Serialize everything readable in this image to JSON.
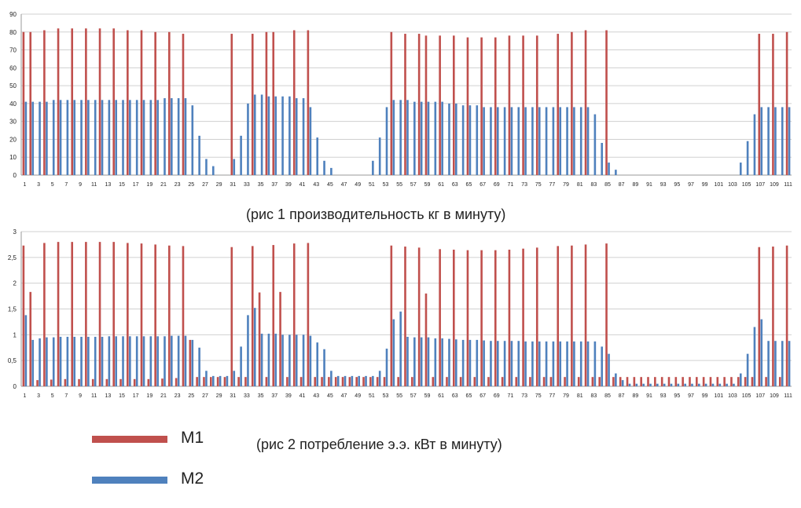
{
  "colors": {
    "m1": "#c0504d",
    "m2": "#4f81bd",
    "grid": "#d0d0d0",
    "axis": "#9a9a9a",
    "text": "#222222"
  },
  "captions": {
    "chart1": "(рис 1 производительность  кг в минуту)",
    "chart2": "(рис 2 потребление  э.э. кВт в минуту)"
  },
  "legend": {
    "m1": "М1",
    "m2": "М2"
  },
  "chart_data": [
    {
      "type": "bar",
      "title": "",
      "xlabel": "",
      "ylabel": "",
      "ylim": [
        0,
        90
      ],
      "yticks": [
        "0",
        "10",
        "20",
        "30",
        "40",
        "50",
        "60",
        "70",
        "80",
        "90"
      ],
      "grid": true,
      "categories_count": 111,
      "xtick_labels_every": 2,
      "series": [
        {
          "key": "m1",
          "values": [
            80,
            80,
            0,
            81,
            0,
            82,
            0,
            82,
            0,
            82,
            0,
            82,
            0,
            82,
            0,
            81,
            0,
            81,
            0,
            80,
            0,
            80,
            0,
            79,
            0,
            0,
            0,
            0,
            0,
            0,
            79,
            0,
            0,
            79,
            0,
            80,
            80,
            0,
            0,
            81,
            0,
            81,
            0,
            0,
            0,
            0,
            0,
            0,
            0,
            0,
            0,
            0,
            0,
            80,
            0,
            79,
            0,
            79,
            78,
            0,
            78,
            0,
            78,
            0,
            77,
            0,
            77,
            0,
            77,
            0,
            78,
            0,
            78,
            0,
            78,
            0,
            0,
            79,
            0,
            80,
            0,
            81,
            0,
            0,
            81,
            0,
            0,
            0,
            0,
            0,
            0,
            0,
            0,
            0,
            0,
            0,
            0,
            0,
            0,
            0,
            0,
            0,
            0,
            0,
            0,
            0,
            79,
            0,
            79,
            0,
            80
          ]
        },
        {
          "key": "m2",
          "values": [
            41,
            41,
            41,
            41,
            42,
            42,
            42,
            42,
            42,
            42,
            42,
            42,
            42,
            42,
            42,
            42,
            42,
            42,
            42,
            42,
            43,
            43,
            43,
            43,
            39,
            22,
            9,
            5,
            0,
            0,
            9,
            22,
            40,
            45,
            45,
            44,
            44,
            44,
            44,
            43,
            43,
            38,
            21,
            8,
            4,
            0,
            0,
            0,
            0,
            0,
            8,
            21,
            38,
            42,
            42,
            42,
            41,
            41,
            41,
            41,
            41,
            40,
            40,
            39,
            39,
            39,
            38,
            38,
            38,
            38,
            38,
            38,
            38,
            38,
            38,
            38,
            38,
            38,
            38,
            38,
            38,
            38,
            34,
            18,
            7,
            3,
            0,
            0,
            0,
            0,
            0,
            0,
            0,
            0,
            0,
            0,
            0,
            0,
            0,
            0,
            0,
            0,
            0,
            7,
            19,
            34,
            38,
            38,
            38,
            38,
            38
          ]
        }
      ]
    },
    {
      "type": "bar",
      "title": "",
      "xlabel": "",
      "ylabel": "",
      "ylim": [
        0,
        3
      ],
      "yticks": [
        "0",
        "0,5",
        "1",
        "1,5",
        "2",
        "2,5",
        "3"
      ],
      "grid": true,
      "categories_count": 111,
      "xtick_labels_every": 2,
      "series": [
        {
          "key": "m1",
          "values": [
            2.73,
            1.83,
            0.12,
            2.78,
            0.13,
            2.8,
            0.14,
            2.8,
            0.14,
            2.8,
            0.14,
            2.8,
            0.14,
            2.8,
            0.14,
            2.78,
            0.14,
            2.77,
            0.14,
            2.75,
            0.15,
            2.73,
            0.16,
            2.72,
            0.9,
            0.18,
            0.18,
            0.18,
            0.18,
            0.18,
            2.7,
            0.18,
            0.18,
            2.72,
            1.82,
            0.18,
            2.74,
            1.83,
            0.18,
            2.77,
            0.18,
            2.78,
            0.18,
            0.18,
            0.18,
            0.18,
            0.18,
            0.18,
            0.18,
            0.18,
            0.18,
            0.18,
            0.18,
            2.73,
            0.18,
            2.71,
            0.18,
            2.69,
            1.8,
            0.18,
            2.66,
            0.18,
            2.65,
            0.18,
            2.64,
            0.18,
            2.64,
            0.18,
            2.64,
            0.18,
            2.65,
            0.18,
            2.67,
            0.18,
            2.69,
            0.18,
            0.18,
            2.72,
            0.18,
            2.73,
            0.18,
            2.75,
            0.18,
            0.18,
            2.77,
            0.18,
            0.18,
            0.18,
            0.18,
            0.18,
            0.18,
            0.18,
            0.18,
            0.18,
            0.18,
            0.18,
            0.18,
            0.18,
            0.18,
            0.18,
            0.18,
            0.18,
            0.18,
            0.18,
            0.18,
            0.18,
            2.7,
            0.18,
            2.71,
            0.18,
            2.73
          ]
        },
        {
          "key": "m2",
          "values": [
            1.38,
            0.9,
            0.93,
            0.95,
            0.95,
            0.96,
            0.96,
            0.96,
            0.96,
            0.96,
            0.96,
            0.96,
            0.97,
            0.97,
            0.97,
            0.97,
            0.97,
            0.97,
            0.97,
            0.97,
            0.97,
            0.98,
            0.98,
            0.98,
            0.9,
            0.75,
            0.3,
            0.2,
            0.2,
            0.2,
            0.3,
            0.77,
            1.38,
            1.52,
            1.02,
            1.02,
            1.02,
            1.0,
            1.0,
            1.0,
            1.0,
            0.98,
            0.85,
            0.72,
            0.3,
            0.2,
            0.2,
            0.2,
            0.2,
            0.2,
            0.2,
            0.3,
            0.73,
            1.3,
            1.45,
            0.96,
            0.95,
            0.95,
            0.95,
            0.93,
            0.93,
            0.92,
            0.91,
            0.9,
            0.9,
            0.9,
            0.89,
            0.88,
            0.88,
            0.88,
            0.88,
            0.88,
            0.87,
            0.87,
            0.87,
            0.87,
            0.87,
            0.87,
            0.87,
            0.87,
            0.87,
            0.87,
            0.87,
            0.77,
            0.63,
            0.25,
            0.12,
            0.05,
            0.05,
            0.05,
            0.05,
            0.05,
            0.05,
            0.05,
            0.05,
            0.05,
            0.05,
            0.05,
            0.05,
            0.05,
            0.05,
            0.05,
            0.05,
            0.25,
            0.63,
            1.15,
            1.3,
            0.88,
            0.88,
            0.88,
            0.88
          ]
        }
      ]
    }
  ]
}
